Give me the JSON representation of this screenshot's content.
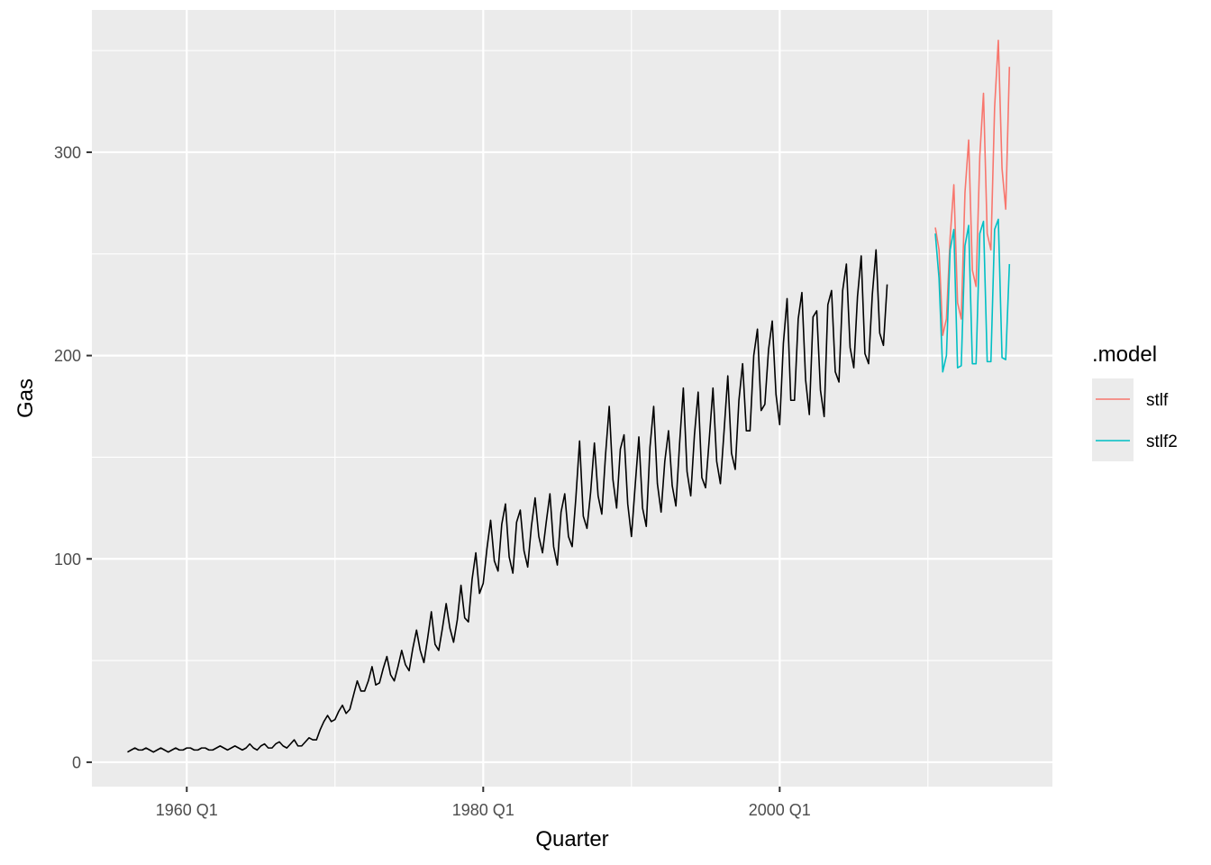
{
  "chart_data": {
    "type": "line",
    "xlabel": "Quarter",
    "ylabel": "Gas",
    "x_ticks": [
      "1960 Q1",
      "1980 Q1",
      "2000 Q1"
    ],
    "y_ticks": [
      0,
      100,
      200,
      300
    ],
    "xlim": [
      1953.6,
      2018.4
    ],
    "ylim": [
      -12,
      370
    ],
    "grid": true,
    "legend": {
      "title": ".model",
      "position": "right",
      "entries": [
        {
          "name": "stlf",
          "color": "#F8766D"
        },
        {
          "name": "stlf2",
          "color": "#00BFC4"
        }
      ]
    },
    "history": {
      "color": "#000000",
      "start": "1956 Q1",
      "values": [
        5,
        6,
        7,
        6,
        6,
        7,
        6,
        5,
        6,
        7,
        6,
        5,
        6,
        7,
        6,
        6,
        7,
        7,
        6,
        6,
        7,
        7,
        6,
        6,
        7,
        8,
        7,
        6,
        7,
        8,
        7,
        6,
        7,
        9,
        7,
        6,
        8,
        9,
        7,
        7,
        9,
        10,
        8,
        7,
        9,
        11,
        8,
        8,
        10,
        12,
        11,
        11,
        16,
        20,
        23,
        20,
        21,
        25,
        28,
        24,
        26,
        33,
        40,
        35,
        35,
        40,
        47,
        38,
        39,
        46,
        52,
        43,
        40,
        47,
        55,
        48,
        45,
        56,
        65,
        55,
        49,
        61,
        74,
        58,
        55,
        66,
        78,
        66,
        59,
        70,
        87,
        71,
        69,
        90,
        103,
        83,
        88,
        105,
        119,
        99,
        94,
        117,
        127,
        101,
        93,
        118,
        124,
        104,
        96,
        116,
        130,
        111,
        103,
        118,
        132,
        106,
        97,
        123,
        132,
        111,
        106,
        130,
        158,
        121,
        115,
        133,
        157,
        131,
        122,
        151,
        175,
        139,
        125,
        154,
        161,
        127,
        111,
        136,
        160,
        125,
        116,
        155,
        175,
        137,
        123,
        148,
        163,
        136,
        126,
        157,
        184,
        143,
        131,
        161,
        182,
        140,
        135,
        159,
        184,
        148,
        137,
        163,
        190,
        152,
        144,
        178,
        196,
        163,
        163,
        200,
        213,
        173,
        176,
        203,
        217,
        181,
        166,
        206,
        228,
        178,
        178,
        218,
        231,
        188,
        171,
        219,
        222,
        183,
        170,
        225,
        232,
        192,
        187,
        232,
        245,
        204,
        194,
        229,
        249,
        201,
        196,
        230,
        252,
        211,
        205,
        235
      ]
    },
    "forecast_start": "2010 Q3",
    "series": [
      {
        "name": "stlf",
        "color": "#F8766D",
        "values": [
          263,
          252,
          210,
          218,
          258,
          284,
          226,
          218,
          280,
          306,
          242,
          234,
          298,
          329,
          260,
          252,
          322,
          355,
          292,
          272,
          342
        ]
      },
      {
        "name": "stlf2",
        "color": "#00BFC4",
        "values": [
          260,
          238,
          192,
          200,
          252,
          262,
          194,
          195,
          254,
          264,
          196,
          196,
          260,
          266,
          197,
          197,
          262,
          267,
          199,
          198,
          245
        ]
      }
    ]
  }
}
